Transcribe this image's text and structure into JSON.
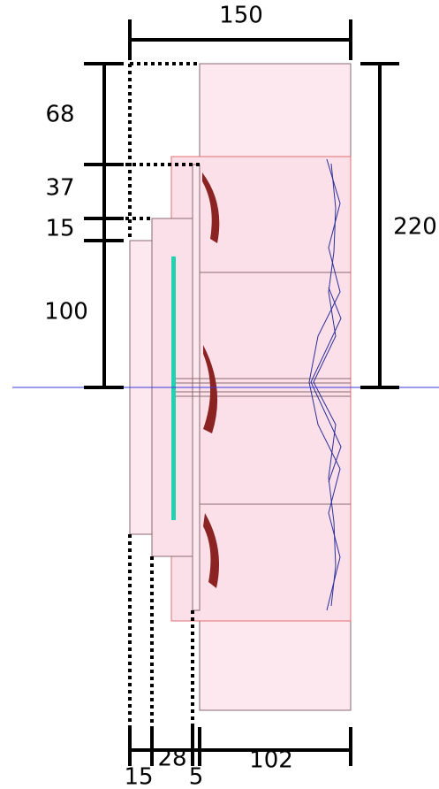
{
  "dimensions": {
    "top_width": "150",
    "left_segments": [
      "68",
      "37",
      "15",
      "100"
    ],
    "right_height": "220",
    "bottom_segments": [
      "15",
      "28",
      "5",
      "102"
    ]
  }
}
